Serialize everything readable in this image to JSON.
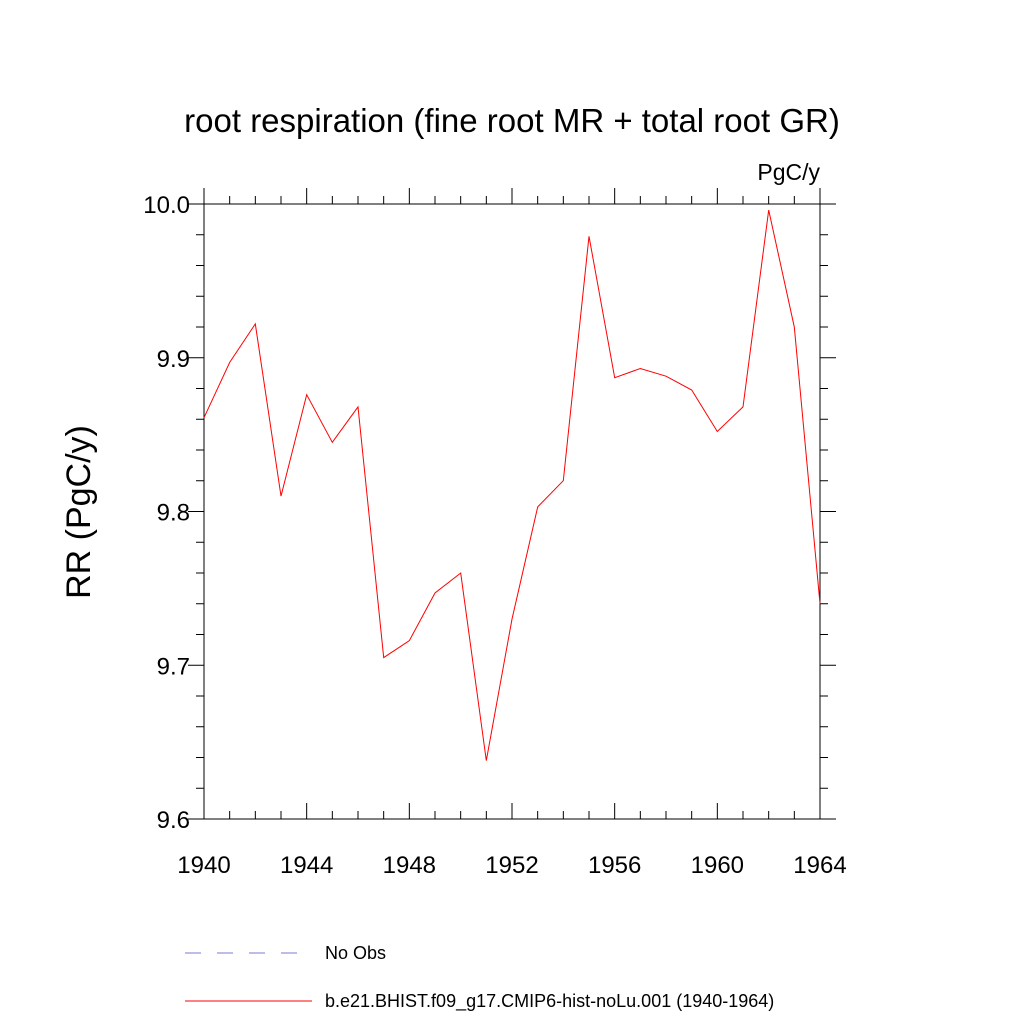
{
  "chart_data": {
    "type": "line",
    "title": "root respiration (fine root MR + total root GR)",
    "units_label": "PgC/y",
    "ylabel": "RR  (PgC/y)",
    "xlabel": "",
    "xlim": [
      1940,
      1964
    ],
    "ylim": [
      9.6,
      10.0
    ],
    "xticks": [
      1940,
      1944,
      1948,
      1952,
      1956,
      1960,
      1964
    ],
    "xtick_labels": [
      "1940",
      "1944",
      "1948",
      "1952",
      "1956",
      "1960",
      "1964"
    ],
    "yticks": [
      9.6,
      9.7,
      9.8,
      9.9,
      10.0
    ],
    "ytick_labels": [
      "9.6",
      "9.7",
      "9.8",
      "9.9",
      "10.0"
    ],
    "grid": false,
    "legend_position": "bottom",
    "series": [
      {
        "name": "b.e21.BHIST.f09_g17.CMIP6-hist-noLu.001 (1940-1964)",
        "color": "#ff0000",
        "style": "solid",
        "x": [
          1940,
          1941,
          1942,
          1943,
          1944,
          1945,
          1946,
          1947,
          1948,
          1949,
          1950,
          1951,
          1952,
          1953,
          1954,
          1955,
          1956,
          1957,
          1958,
          1959,
          1960,
          1961,
          1962,
          1963,
          1964
        ],
        "values": [
          9.861,
          9.897,
          9.922,
          9.81,
          9.876,
          9.845,
          9.868,
          9.705,
          9.716,
          9.747,
          9.76,
          9.638,
          9.73,
          9.803,
          9.82,
          9.979,
          9.887,
          9.893,
          9.888,
          9.879,
          9.852,
          9.868,
          9.996,
          9.92,
          9.74
        ]
      },
      {
        "name": "No Obs",
        "color": "#7b7bd6",
        "style": "dashed",
        "x": [],
        "values": []
      }
    ]
  }
}
